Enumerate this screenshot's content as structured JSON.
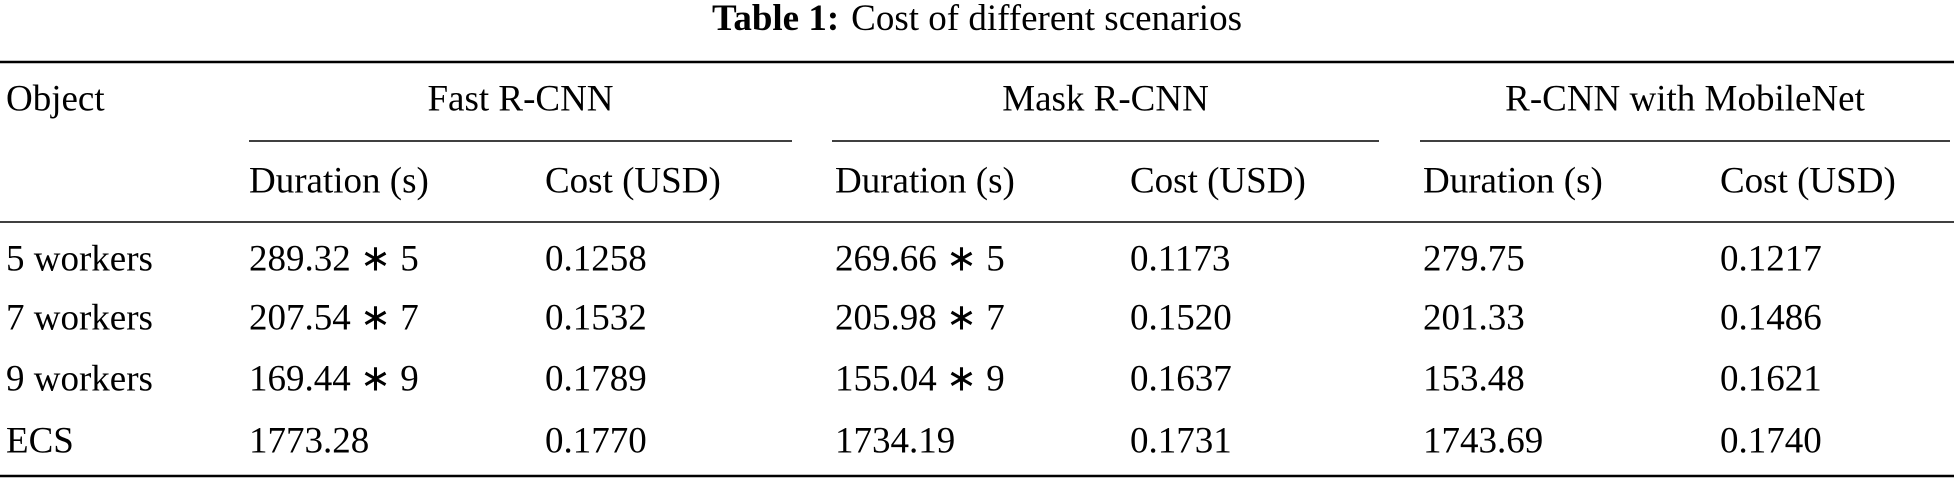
{
  "title": {
    "label": "Table 1:",
    "text": "Cost of different scenarios"
  },
  "table": {
    "corner": "Object",
    "groups": [
      {
        "name": "Fast R-CNN",
        "columns": [
          "Duration (s)",
          "Cost (USD)"
        ]
      },
      {
        "name": "Mask R-CNN",
        "columns": [
          "Duration (s)",
          "Cost (USD)"
        ]
      },
      {
        "name": "R-CNN with MobileNet",
        "columns": [
          "Duration (s)",
          "Cost (USD)"
        ]
      }
    ],
    "rows": [
      [
        "5 workers",
        "289.32 ∗ 5",
        "0.1258",
        "269.66 ∗ 5",
        "0.1173",
        "279.75",
        "0.1217"
      ],
      [
        "7 workers",
        "207.54 ∗ 7",
        "0.1532",
        "205.98 ∗ 7",
        "0.1520",
        "201.33",
        "0.1486"
      ],
      [
        "9 workers",
        "169.44 ∗ 9",
        "0.1789",
        "155.04 ∗ 9",
        "0.1637",
        "153.48",
        "0.1621"
      ],
      [
        "ECS",
        "1773.28",
        "0.1770",
        "1734.19",
        "0.1731",
        "1743.69",
        "0.1740"
      ]
    ]
  }
}
